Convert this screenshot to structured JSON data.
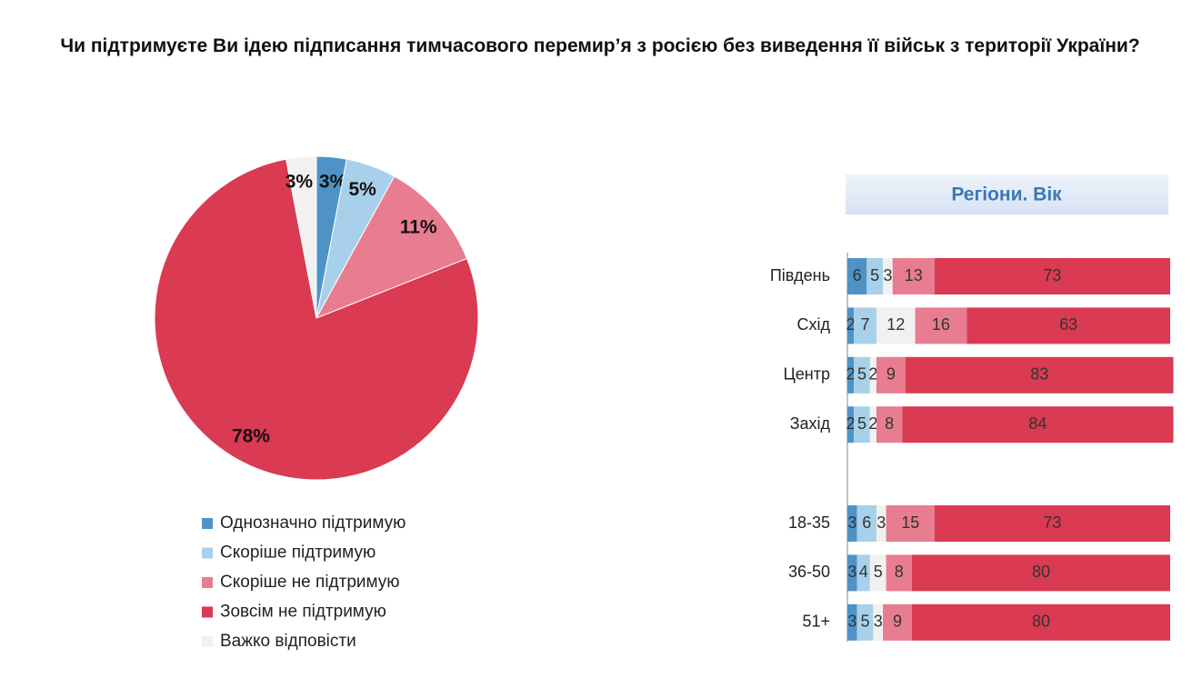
{
  "chart_data": [
    {
      "type": "pie",
      "title": "Чи підтримуєте Ви ідею підписання тимчасового перемир’я з росією без виведення її військ з території України?",
      "categories": [
        "Однозначно підтримую",
        "Скоріше підтримую",
        "Скоріше не підтримую",
        "Зовсім не підтримую",
        "Важко відповісти"
      ],
      "values": [
        3,
        5,
        11,
        78,
        3
      ],
      "value_labels": [
        "3%",
        "5%",
        "11%",
        "78%",
        "3%"
      ],
      "colors": [
        "#4f93c6",
        "#a8d0ea",
        "#e87c90",
        "#da3a52",
        "#f1f1f1"
      ]
    },
    {
      "type": "stacked-bar-horizontal",
      "title": "Регіони. Вік",
      "categories": [
        "Південь",
        "Схід",
        "Центр",
        "Захід",
        null,
        "18-35",
        "36-50",
        "51+"
      ],
      "xlim": [
        0,
        100
      ],
      "series": [
        {
          "color": "#4f93c6",
          "values": [
            6,
            2,
            2,
            2,
            null,
            3,
            3,
            3
          ]
        },
        {
          "color": "#a8d0ea",
          "values": [
            5,
            7,
            5,
            5,
            null,
            6,
            4,
            5
          ]
        },
        {
          "color": "#f1f1f1",
          "values": [
            3,
            12,
            2,
            2,
            null,
            3,
            5,
            3
          ]
        },
        {
          "color": "#e87c90",
          "values": [
            13,
            16,
            9,
            8,
            null,
            15,
            8,
            9
          ]
        },
        {
          "color": "#da3a52",
          "values": [
            73,
            63,
            83,
            84,
            null,
            73,
            80,
            80
          ]
        }
      ]
    }
  ]
}
